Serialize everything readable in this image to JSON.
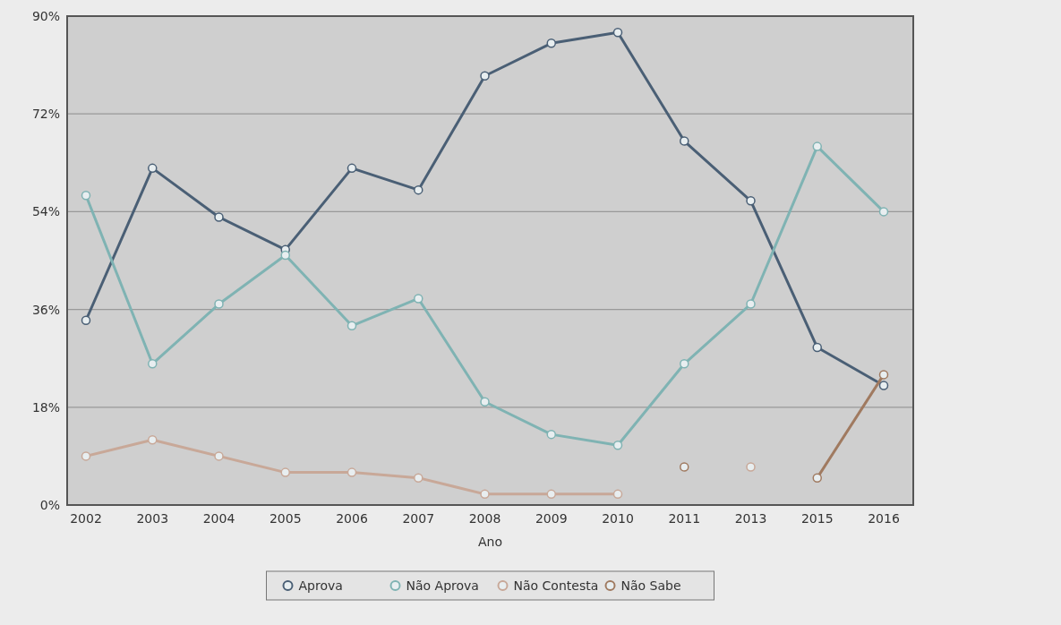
{
  "chart_data": {
    "type": "line",
    "xlabel": "Ano",
    "categories": [
      "2002",
      "2003",
      "2004",
      "2005",
      "2006",
      "2007",
      "2008",
      "2009",
      "2010",
      "2011",
      "2013",
      "2015",
      "2016"
    ],
    "ylim": [
      0,
      90
    ],
    "yticks": [
      {
        "value": 0,
        "label": "0%"
      },
      {
        "value": 18,
        "label": "18%"
      },
      {
        "value": 36,
        "label": "36%"
      },
      {
        "value": 54,
        "label": "54%"
      },
      {
        "value": 72,
        "label": "72%"
      },
      {
        "value": 90,
        "label": "90%"
      }
    ],
    "grid": "y",
    "legend": "bottom",
    "marker": "circle",
    "line_style": "solid",
    "series": [
      {
        "name": "Aprova",
        "color": "#4a5f75",
        "values": [
          34,
          62,
          53,
          47,
          62,
          58,
          79,
          85,
          87,
          67,
          56,
          29,
          22
        ]
      },
      {
        "name": "Não Aprova",
        "color": "#7fb3b3",
        "values": [
          57,
          26,
          37,
          46,
          33,
          38,
          19,
          13,
          11,
          26,
          37,
          66,
          54
        ]
      },
      {
        "name": "Não Contesta",
        "color": "#c8a898",
        "values": [
          9,
          12,
          9,
          6,
          6,
          5,
          2,
          2,
          2,
          null,
          7,
          null,
          null
        ]
      },
      {
        "name": "Não Sabe",
        "color": "#a07a60",
        "values": [
          null,
          null,
          null,
          null,
          null,
          null,
          null,
          null,
          null,
          7,
          null,
          5,
          24
        ]
      }
    ]
  }
}
